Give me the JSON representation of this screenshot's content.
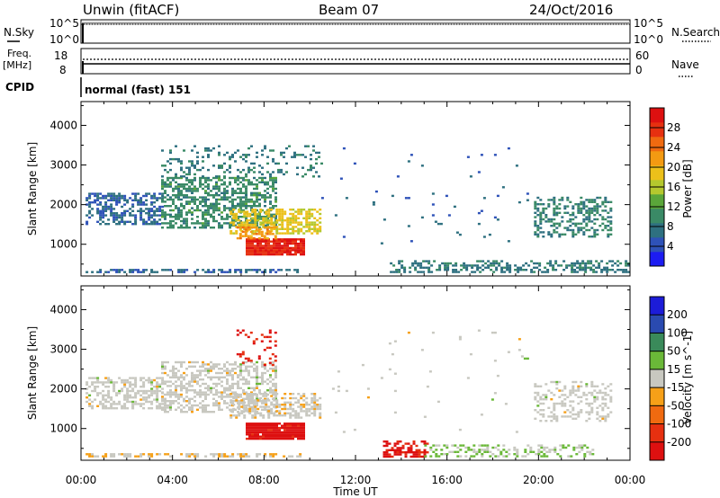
{
  "header": {
    "station": "Unwin (fitACF)",
    "beam": "Beam 07",
    "date": "24/Oct/2016"
  },
  "top_panels": {
    "nsky": {
      "label": "N.Sky",
      "ticks": [
        "10^5",
        "10^0"
      ]
    },
    "nsearch": {
      "label": "N.Search",
      "ticks": [
        "10^5",
        "10^0"
      ]
    },
    "freq": {
      "label_line1": "Freq.",
      "label_line2": "[MHz]",
      "ticks": [
        "18",
        "8"
      ]
    },
    "nave": {
      "label": "Nave",
      "ticks": [
        "60",
        "0"
      ]
    },
    "cpid": {
      "label": "CPID",
      "value": "normal (fast) 151"
    }
  },
  "chart_data": [
    {
      "type": "heatmap",
      "name": "power",
      "xlabel": "Time UT",
      "ylabel": "Slant Range [km]",
      "xlim": [
        0,
        24
      ],
      "ylim": [
        200,
        4600
      ],
      "x_ticks": [
        "00:00",
        "04:00",
        "08:00",
        "12:00",
        "16:00",
        "20:00",
        "00:00"
      ],
      "y_ticks": [
        1000,
        2000,
        3000,
        4000
      ],
      "colorbar": {
        "label": "Power [dB]",
        "range": [
          0,
          32
        ],
        "ticks": [
          "4",
          "8",
          "12",
          "16",
          "20",
          "24",
          "28"
        ],
        "colors": [
          "#1c1cf2",
          "#2e52b8",
          "#2e7080",
          "#3a8a66",
          "#5aa63a",
          "#b4c82e",
          "#ecc01a",
          "#f39a12",
          "#ef6a10",
          "#e63010",
          "#dd1010"
        ]
      },
      "regions": [
        {
          "t": [
            0.2,
            9.6
          ],
          "r": [
            280,
            380
          ],
          "v": 6,
          "d": 0.55
        },
        {
          "t": [
            0.2,
            3.6
          ],
          "r": [
            1500,
            2300
          ],
          "v": 6,
          "d": 0.5
        },
        {
          "t": [
            3.5,
            8.5
          ],
          "r": [
            1400,
            2700
          ],
          "v": 10,
          "d": 0.55
        },
        {
          "t": [
            6.5,
            10.4
          ],
          "r": [
            1300,
            1900
          ],
          "v": 18,
          "d": 0.6
        },
        {
          "t": [
            7.2,
            9.7
          ],
          "r": [
            750,
            1150
          ],
          "v": 29,
          "d": 0.95
        },
        {
          "t": [
            6.8,
            8.5
          ],
          "r": [
            1150,
            1450
          ],
          "v": 22,
          "d": 0.6
        },
        {
          "t": [
            3.5,
            10.5
          ],
          "r": [
            2700,
            3500
          ],
          "v": 8,
          "d": 0.18
        },
        {
          "t": [
            13.5,
            23.9
          ],
          "r": [
            300,
            600
          ],
          "v": 8,
          "d": 0.45
        },
        {
          "t": [
            19.8,
            23.2
          ],
          "r": [
            1200,
            2200
          ],
          "v": 9,
          "d": 0.4
        },
        {
          "t": [
            10.5,
            19.5
          ],
          "r": [
            900,
            3500
          ],
          "v": 6,
          "d": 0.015
        }
      ]
    },
    {
      "type": "heatmap",
      "name": "velocity",
      "xlabel": "Time UT",
      "ylabel": "Slant Range [km]",
      "xlim": [
        0,
        24
      ],
      "ylim": [
        200,
        4600
      ],
      "x_ticks": [
        "00:00",
        "04:00",
        "08:00",
        "12:00",
        "16:00",
        "20:00",
        "00:00"
      ],
      "y_ticks": [
        1000,
        2000,
        3000,
        4000
      ],
      "colorbar": {
        "label": "Velocity [m s^-1]",
        "range": [
          -250,
          250
        ],
        "ticks": [
          "200",
          "100",
          "50",
          "15",
          "-15",
          "-50",
          "-100",
          "-200"
        ],
        "colors": [
          "#dd1010",
          "#e63010",
          "#f06a10",
          "#f6a018",
          "#c8c8c0",
          "#6ab838",
          "#3a8a5a",
          "#2a4ab0",
          "#1c1cd8"
        ]
      },
      "regions": [
        {
          "t": [
            0.2,
            9.6
          ],
          "r": [
            280,
            380
          ],
          "v": -20,
          "d": 0.5
        },
        {
          "t": [
            0.2,
            3.6
          ],
          "r": [
            1500,
            2300
          ],
          "v": 0,
          "d": 0.5
        },
        {
          "t": [
            3.5,
            8.5
          ],
          "r": [
            1400,
            2700
          ],
          "v": 0,
          "d": 0.5
        },
        {
          "t": [
            6.5,
            10.4
          ],
          "r": [
            1300,
            1900
          ],
          "v": -10,
          "d": 0.55
        },
        {
          "t": [
            7.2,
            9.7
          ],
          "r": [
            750,
            1150
          ],
          "v": -220,
          "d": 0.95
        },
        {
          "t": [
            6.8,
            8.5
          ],
          "r": [
            2600,
            3500
          ],
          "v": -200,
          "d": 0.15
        },
        {
          "t": [
            13.2,
            15.2
          ],
          "r": [
            300,
            700
          ],
          "v": -200,
          "d": 0.6
        },
        {
          "t": [
            15.0,
            22.5
          ],
          "r": [
            300,
            600
          ],
          "v": 30,
          "d": 0.35
        },
        {
          "t": [
            19.8,
            23.2
          ],
          "r": [
            1200,
            2200
          ],
          "v": 0,
          "d": 0.35
        },
        {
          "t": [
            10.5,
            19.5
          ],
          "r": [
            900,
            3500
          ],
          "v": 0,
          "d": 0.015
        }
      ]
    }
  ]
}
